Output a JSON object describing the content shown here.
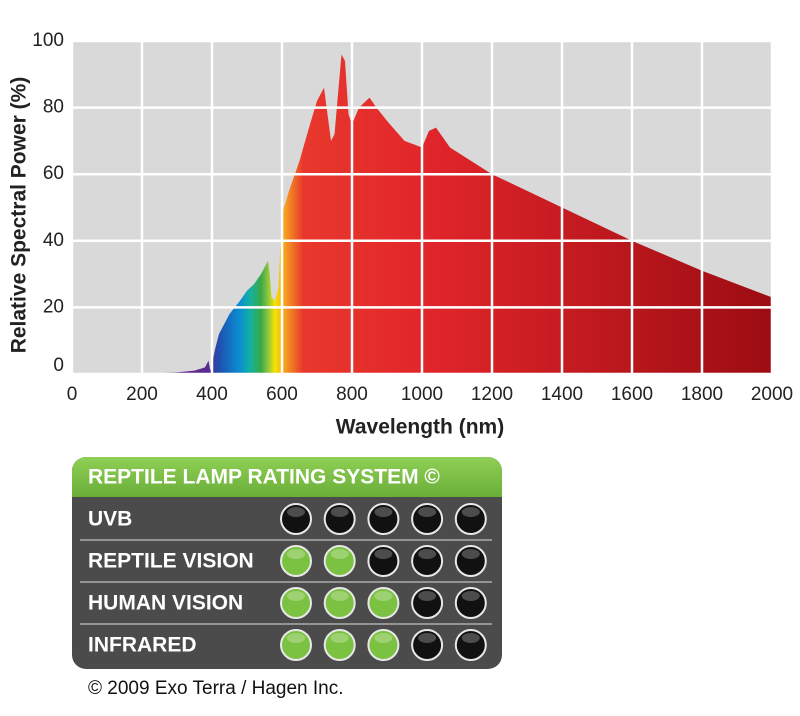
{
  "chart_data": {
    "type": "area",
    "xlabel": "Wavelength (nm)",
    "ylabel": "Relative Spectral Power (%)",
    "x": [
      200,
      300,
      350,
      380,
      390,
      395,
      400,
      410,
      420,
      450,
      480,
      500,
      520,
      540,
      550,
      560,
      565,
      570,
      580,
      590,
      600,
      620,
      650,
      680,
      700,
      720,
      740,
      750,
      760,
      770,
      780,
      790,
      800,
      820,
      850,
      870,
      900,
      950,
      1000,
      1020,
      1040,
      1080,
      1200,
      1400,
      1600,
      1800,
      2000
    ],
    "values": [
      0,
      0.5,
      1,
      2,
      4,
      1,
      3,
      8,
      12,
      18,
      22,
      25,
      27,
      30,
      32,
      34,
      30,
      23,
      22,
      26,
      48,
      55,
      64,
      75,
      82,
      86,
      70,
      72,
      84,
      96,
      94,
      78,
      75,
      80,
      83,
      80,
      76,
      70,
      68,
      73,
      74,
      68,
      60,
      50,
      40,
      31,
      23
    ],
    "xlim": [
      0,
      2000
    ],
    "xticks": [
      0,
      200,
      400,
      600,
      800,
      1000,
      1200,
      1400,
      1600,
      1800,
      2000
    ],
    "ylim": [
      0,
      100
    ],
    "yticks": [
      0,
      20,
      40,
      60,
      80,
      100
    ],
    "grid": true,
    "background": "#d9d9d9"
  },
  "rating_table": {
    "title": "REPTILE LAMP RATING SYSTEM ©",
    "dots": 5,
    "on_color": "#7cc242",
    "off_color": "#111111",
    "rows": [
      {
        "label": "UVB",
        "rating": 0
      },
      {
        "label": "REPTILE VISION",
        "rating": 2
      },
      {
        "label": "HUMAN VISION",
        "rating": 3
      },
      {
        "label": "INFRARED",
        "rating": 3
      }
    ]
  },
  "footer": "© 2009 Exo Terra / Hagen Inc."
}
